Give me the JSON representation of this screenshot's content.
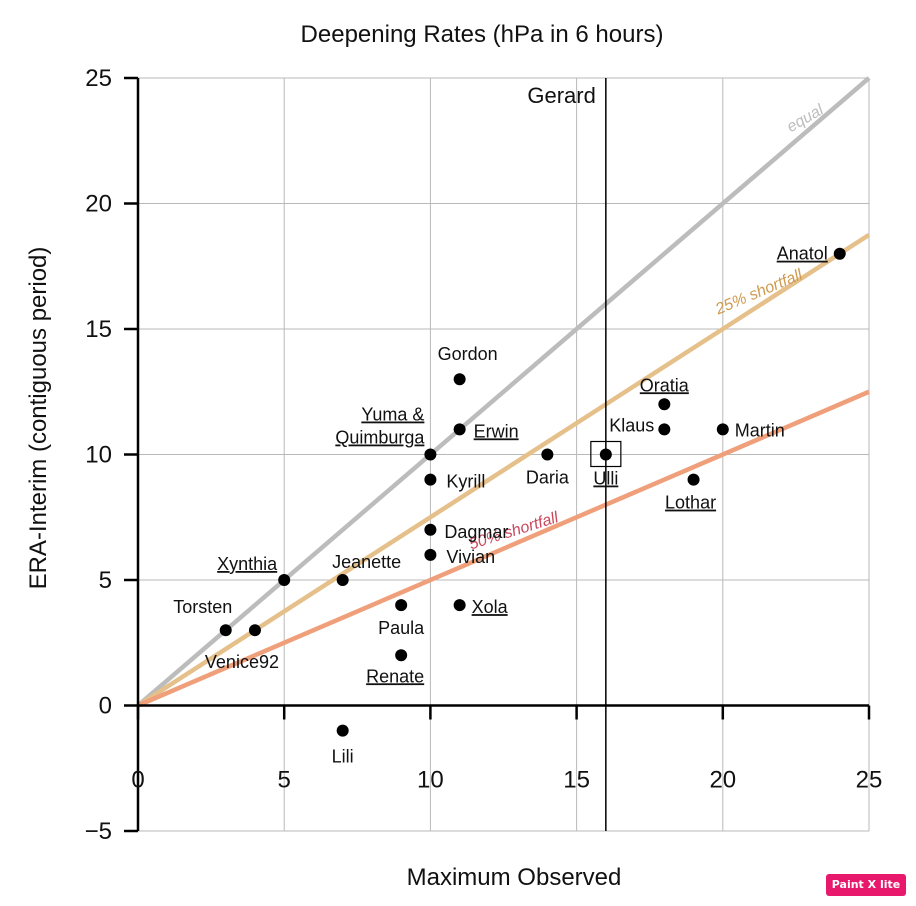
{
  "chart_data": {
    "type": "scatter",
    "title": "Deepening Rates (hPa in 6 hours)",
    "xlabel": "Maximum Observed",
    "ylabel": "ERA-Interim (contiguous period)",
    "xlim": [
      0,
      25
    ],
    "ylim": [
      -5,
      25
    ],
    "x_ticks": [
      "0",
      "5",
      "10",
      "15",
      "20",
      "25"
    ],
    "y_ticks": [
      "−5",
      "0",
      "5",
      "10",
      "15",
      "20",
      "25"
    ],
    "grid": true,
    "reference_lines": [
      {
        "label": "equal",
        "slope": 1.0,
        "color": "#bcbcbc"
      },
      {
        "label": "25% shortfall",
        "slope": 0.75,
        "color": "#e6c08a"
      },
      {
        "label": "50% shortfall",
        "slope": 0.5,
        "color": "#ef9f7a"
      }
    ],
    "reference_label_colors": {
      "equal": "#bdbdbd",
      "25% shortfall": "#cf9a4e",
      "50% shortfall": "#c8485c"
    },
    "vertical_marker": {
      "label": "Gerard",
      "x": 16
    },
    "highlight_box_point": "Ulli",
    "points": [
      {
        "name": "Anatol",
        "x": 24,
        "y": 18,
        "underlined": true
      },
      {
        "name": "Gordon",
        "x": 11,
        "y": 13,
        "underlined": false
      },
      {
        "name": "Oratia",
        "x": 18,
        "y": 12,
        "underlined": true
      },
      {
        "name": "Klaus",
        "x": 18,
        "y": 11,
        "underlined": false
      },
      {
        "name": "Martin",
        "x": 20,
        "y": 11,
        "underlined": false
      },
      {
        "name": "Erwin",
        "x": 11,
        "y": 11,
        "underlined": true
      },
      {
        "name": "Yuma &\nQuimburga",
        "x": 10,
        "y": 10,
        "underlined": true
      },
      {
        "name": "Daria",
        "x": 14,
        "y": 10,
        "underlined": false
      },
      {
        "name": "Ulli",
        "x": 16,
        "y": 10,
        "underlined": true
      },
      {
        "name": "Kyrill",
        "x": 10,
        "y": 9,
        "underlined": false
      },
      {
        "name": "Lothar",
        "x": 19,
        "y": 9,
        "underlined": true
      },
      {
        "name": "Dagmar",
        "x": 10,
        "y": 7,
        "underlined": false
      },
      {
        "name": "Vivian",
        "x": 10,
        "y": 6,
        "underlined": false
      },
      {
        "name": "Xynthia",
        "x": 5,
        "y": 5,
        "underlined": true
      },
      {
        "name": "Jeanette",
        "x": 7,
        "y": 5,
        "underlined": false
      },
      {
        "name": "Paula",
        "x": 9,
        "y": 4,
        "underlined": false
      },
      {
        "name": "Xola",
        "x": 11,
        "y": 4,
        "underlined": true
      },
      {
        "name": "Torsten",
        "x": 3,
        "y": 3,
        "underlined": false
      },
      {
        "name": "Venice92",
        "x": 4,
        "y": 3,
        "underlined": false
      },
      {
        "name": "Renate",
        "x": 9,
        "y": 2,
        "underlined": true
      },
      {
        "name": "Lili",
        "x": 7,
        "y": -1,
        "underlined": false
      }
    ]
  },
  "watermark": {
    "text": "Paint X lite"
  }
}
